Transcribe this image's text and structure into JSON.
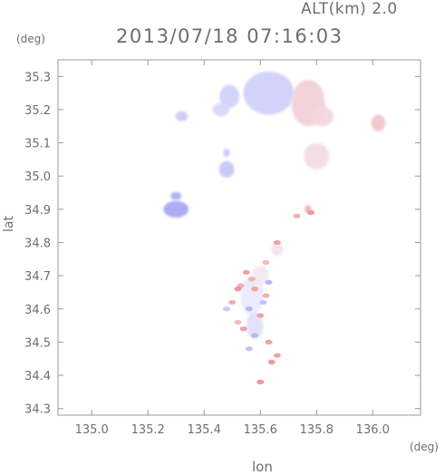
{
  "header": {
    "altitude_label": "ALT(km) 2.0",
    "timestamp": "2013/07/18 07:16:03"
  },
  "chart_data": {
    "type": "heatmap",
    "xlabel": "lon",
    "ylabel": "lat",
    "x_unit": "(deg)",
    "y_unit": "(deg)",
    "xlim": [
      134.88,
      136.17
    ],
    "ylim": [
      34.28,
      35.35
    ],
    "x_ticks": [
      "135.0",
      "135.2",
      "135.4",
      "135.6",
      "135.8",
      "136.0"
    ],
    "x_tick_values": [
      135.0,
      135.2,
      135.4,
      135.6,
      135.8,
      136.0
    ],
    "y_ticks": [
      "34.3",
      "34.4",
      "34.5",
      "34.6",
      "34.7",
      "34.8",
      "34.9",
      "35.0",
      "35.1",
      "35.2",
      "35.3"
    ],
    "y_tick_values": [
      34.3,
      34.4,
      34.5,
      34.6,
      34.7,
      34.8,
      34.9,
      35.0,
      35.1,
      35.2,
      35.3
    ],
    "colors": {
      "negative": "#8f8ff0",
      "positive": "#f07f7f",
      "neutral": "#f4f4ff",
      "axis": "#9a9a9a"
    },
    "regions": [
      {
        "lon": 135.63,
        "lat": 35.25,
        "rx": 0.09,
        "ry": 0.065,
        "v": -0.35
      },
      {
        "lon": 135.77,
        "lat": 35.22,
        "rx": 0.06,
        "ry": 0.07,
        "v": 0.3
      },
      {
        "lon": 135.82,
        "lat": 35.18,
        "rx": 0.04,
        "ry": 0.03,
        "v": 0.25
      },
      {
        "lon": 135.49,
        "lat": 35.24,
        "rx": 0.035,
        "ry": 0.035,
        "v": -0.35
      },
      {
        "lon": 135.46,
        "lat": 35.2,
        "rx": 0.03,
        "ry": 0.02,
        "v": -0.3
      },
      {
        "lon": 135.32,
        "lat": 35.18,
        "rx": 0.022,
        "ry": 0.015,
        "v": -0.4
      },
      {
        "lon": 136.02,
        "lat": 35.16,
        "rx": 0.025,
        "ry": 0.025,
        "v": 0.4
      },
      {
        "lon": 135.8,
        "lat": 35.06,
        "rx": 0.045,
        "ry": 0.04,
        "v": 0.2
      },
      {
        "lon": 135.48,
        "lat": 35.02,
        "rx": 0.027,
        "ry": 0.025,
        "v": -0.45
      },
      {
        "lon": 135.48,
        "lat": 35.07,
        "rx": 0.012,
        "ry": 0.012,
        "v": -0.45
      },
      {
        "lon": 135.3,
        "lat": 34.9,
        "rx": 0.045,
        "ry": 0.025,
        "v": -0.75
      },
      {
        "lon": 135.3,
        "lat": 34.94,
        "rx": 0.02,
        "ry": 0.012,
        "v": -0.7
      },
      {
        "lon": 135.57,
        "lat": 34.64,
        "rx": 0.04,
        "ry": 0.06,
        "v": -0.1
      },
      {
        "lon": 135.58,
        "lat": 34.55,
        "rx": 0.03,
        "ry": 0.04,
        "v": -0.2
      },
      {
        "lon": 135.6,
        "lat": 34.7,
        "rx": 0.03,
        "ry": 0.03,
        "v": 0.1
      },
      {
        "lon": 135.66,
        "lat": 34.78,
        "rx": 0.02,
        "ry": 0.02,
        "v": 0.15
      },
      {
        "lon": 135.77,
        "lat": 34.9,
        "rx": 0.012,
        "ry": 0.012,
        "v": 0.6
      }
    ],
    "dots": [
      {
        "lon": 135.55,
        "lat": 34.71,
        "v": 0.7
      },
      {
        "lon": 135.53,
        "lat": 34.67,
        "v": 0.6
      },
      {
        "lon": 135.58,
        "lat": 34.66,
        "v": 0.7
      },
      {
        "lon": 135.62,
        "lat": 34.64,
        "v": 0.6
      },
      {
        "lon": 135.5,
        "lat": 34.62,
        "v": 0.6
      },
      {
        "lon": 135.56,
        "lat": 34.6,
        "v": -0.6
      },
      {
        "lon": 135.6,
        "lat": 34.58,
        "v": 0.7
      },
      {
        "lon": 135.52,
        "lat": 34.56,
        "v": 0.5
      },
      {
        "lon": 135.58,
        "lat": 34.52,
        "v": -0.6
      },
      {
        "lon": 135.63,
        "lat": 34.5,
        "v": 0.7
      },
      {
        "lon": 135.56,
        "lat": 34.48,
        "v": -0.5
      },
      {
        "lon": 135.64,
        "lat": 34.44,
        "v": 0.8
      },
      {
        "lon": 135.66,
        "lat": 34.46,
        "v": 0.7
      },
      {
        "lon": 135.6,
        "lat": 34.38,
        "v": 0.8
      },
      {
        "lon": 135.66,
        "lat": 34.8,
        "v": 0.7
      },
      {
        "lon": 135.62,
        "lat": 34.74,
        "v": 0.5
      },
      {
        "lon": 135.78,
        "lat": 34.89,
        "v": 0.8
      },
      {
        "lon": 135.73,
        "lat": 34.88,
        "v": 0.6
      },
      {
        "lon": 135.52,
        "lat": 34.66,
        "v": 0.8
      },
      {
        "lon": 135.61,
        "lat": 34.62,
        "v": -0.5
      },
      {
        "lon": 135.54,
        "lat": 34.54,
        "v": 0.7
      },
      {
        "lon": 135.48,
        "lat": 34.6,
        "v": -0.4
      },
      {
        "lon": 135.63,
        "lat": 34.68,
        "v": -0.6
      },
      {
        "lon": 135.57,
        "lat": 34.69,
        "v": 0.6
      }
    ]
  }
}
